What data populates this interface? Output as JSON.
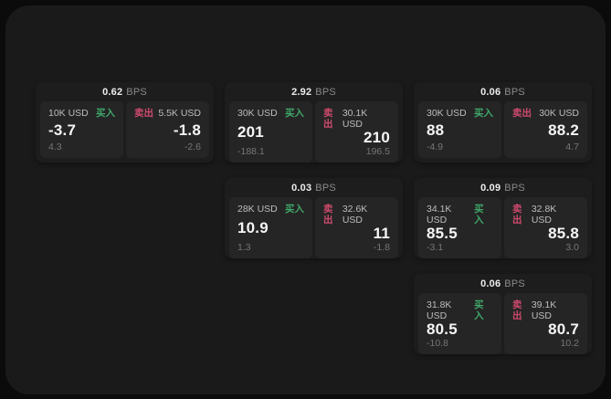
{
  "labels": {
    "buy": "买入",
    "sell": "卖出",
    "bps_unit": "BPS"
  },
  "colors": {
    "buy_green": "#3fa86a",
    "sell_red": "#cf4a6e",
    "panel_bg": "#1a1a1a",
    "card_bg": "#1d1d1d",
    "subcard_bg": "#252525",
    "outer_bg": "#0b0b0b"
  },
  "cards": [
    {
      "bps": "0.62",
      "buy": {
        "amount": "10K USD",
        "price": "-3.7",
        "delta": "4.3"
      },
      "sell": {
        "amount": "5.5K USD",
        "price": "-1.8",
        "delta": "-2.6"
      }
    },
    {
      "bps": "2.92",
      "buy": {
        "amount": "30K USD",
        "price": "201",
        "delta": "-188.1"
      },
      "sell": {
        "amount": "30.1K USD",
        "price": "210",
        "delta": "196.5"
      }
    },
    {
      "bps": "0.06",
      "buy": {
        "amount": "30K USD",
        "price": "88",
        "delta": "-4.9"
      },
      "sell": {
        "amount": "30K USD",
        "price": "88.2",
        "delta": "4.7"
      }
    },
    {
      "bps": "0.03",
      "buy": {
        "amount": "28K USD",
        "price": "10.9",
        "delta": "1.3"
      },
      "sell": {
        "amount": "32.6K USD",
        "price": "11",
        "delta": "-1.8"
      }
    },
    {
      "bps": "0.09",
      "buy": {
        "amount": "34.1K USD",
        "price": "85.5",
        "delta": "-3.1"
      },
      "sell": {
        "amount": "32.8K USD",
        "price": "85.8",
        "delta": "3.0"
      }
    },
    {
      "bps": "0.06",
      "buy": {
        "amount": "31.8K USD",
        "price": "80.5",
        "delta": "-10.8"
      },
      "sell": {
        "amount": "39.1K USD",
        "price": "80.7",
        "delta": "10.2"
      }
    }
  ]
}
